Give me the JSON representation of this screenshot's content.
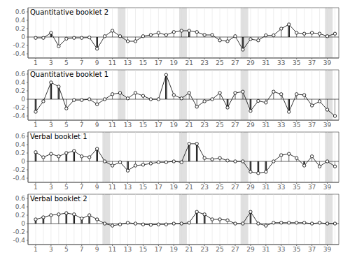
{
  "chart_data": [
    {
      "type": "stem",
      "title": "Quantitative booklet 2",
      "x": [
        1,
        2,
        3,
        4,
        5,
        6,
        7,
        8,
        9,
        10,
        11,
        12,
        13,
        14,
        15,
        16,
        17,
        18,
        19,
        20,
        21,
        22,
        23,
        24,
        25,
        26,
        27,
        28,
        29,
        30,
        31,
        32,
        33,
        34,
        35,
        36,
        37,
        38,
        39,
        40
      ],
      "values": [
        -0.02,
        -0.02,
        0.1,
        -0.22,
        -0.04,
        -0.02,
        -0.02,
        -0.01,
        -0.28,
        0.02,
        0.15,
        0.02,
        -0.1,
        -0.1,
        0.02,
        0.05,
        0.1,
        0.05,
        0.12,
        0.15,
        0.15,
        0.12,
        0.05,
        0.05,
        -0.08,
        -0.1,
        0.02,
        -0.3,
        -0.05,
        -0.08,
        0.04,
        0.04,
        0.2,
        0.3,
        0.1,
        0.08,
        0.1,
        0.08,
        0.02,
        0.08
      ],
      "highlighted_items": [
        2,
        3,
        9,
        21,
        28,
        34
      ],
      "shaded_items": [
        12,
        20,
        28,
        39
      ],
      "xlim": [
        0.0,
        40.5
      ],
      "ylim": [
        -0.5,
        0.7
      ],
      "xticks": [
        1,
        3,
        5,
        7,
        9,
        11,
        13,
        15,
        17,
        19,
        21,
        23,
        25,
        27,
        29,
        31,
        33,
        35,
        37,
        39
      ],
      "yticks": [
        -0.4,
        -0.2,
        0,
        0.2,
        0.4,
        0.6
      ],
      "grid": true,
      "color": "#000000",
      "shade_color": "#cccccc",
      "marker": "circle"
    },
    {
      "type": "stem",
      "title": "Quantitative booklet 1",
      "x": [
        1,
        2,
        3,
        4,
        5,
        6,
        7,
        8,
        9,
        10,
        11,
        12,
        13,
        14,
        15,
        16,
        17,
        18,
        19,
        20,
        21,
        22,
        23,
        24,
        25,
        26,
        27,
        28,
        29,
        30,
        31,
        32,
        33,
        34,
        35,
        36,
        37,
        38,
        39,
        40
      ],
      "values": [
        -0.3,
        -0.05,
        0.4,
        0.3,
        -0.22,
        -0.02,
        -0.02,
        0.0,
        -0.12,
        0.0,
        0.12,
        0.15,
        0.02,
        0.15,
        0.08,
        0.0,
        0.0,
        0.58,
        0.1,
        0.02,
        0.15,
        -0.18,
        -0.05,
        0.0,
        0.15,
        -0.2,
        0.15,
        0.18,
        -0.28,
        -0.04,
        -0.08,
        0.18,
        0.12,
        -0.3,
        0.12,
        0.1,
        -0.15,
        -0.05,
        -0.25,
        -0.4
      ],
      "highlighted_items": [
        1,
        3,
        4,
        18,
        24,
        26,
        29,
        34
      ],
      "shaded_items": [
        12,
        20,
        28,
        39
      ],
      "xlim": [
        0.0,
        40.5
      ],
      "ylim": [
        -0.5,
        0.7
      ],
      "xticks": [
        1,
        3,
        5,
        7,
        9,
        11,
        13,
        15,
        17,
        19,
        21,
        23,
        25,
        27,
        29,
        31,
        33,
        35,
        37,
        39
      ],
      "yticks": [
        -0.4,
        -0.2,
        0,
        0.2,
        0.4,
        0.6
      ],
      "grid": true,
      "color": "#000000",
      "shade_color": "#cccccc",
      "marker": "circle"
    },
    {
      "type": "stem",
      "title": "Verbal booklet 1",
      "x": [
        1,
        2,
        3,
        4,
        5,
        6,
        7,
        8,
        9,
        10,
        11,
        12,
        13,
        14,
        15,
        16,
        17,
        18,
        19,
        20,
        21,
        22,
        23,
        24,
        25,
        26,
        27,
        28,
        29,
        30,
        31,
        32,
        33,
        34,
        35,
        36,
        37,
        38,
        39,
        40
      ],
      "values": [
        0.22,
        0.1,
        0.18,
        0.12,
        0.2,
        0.25,
        0.12,
        0.1,
        0.3,
        0.0,
        -0.1,
        -0.02,
        -0.22,
        -0.1,
        -0.08,
        -0.05,
        -0.02,
        -0.02,
        0.0,
        -0.02,
        0.42,
        0.42,
        0.08,
        0.05,
        0.08,
        0.02,
        0.0,
        0.0,
        -0.25,
        -0.28,
        -0.25,
        0.0,
        0.15,
        0.18,
        0.08,
        -0.1,
        0.12,
        -0.12,
        0.0,
        -0.12
      ],
      "highlighted_items": [
        1,
        5,
        6,
        9,
        13,
        21,
        22,
        29,
        30,
        31,
        36
      ],
      "shaded_items": [
        10,
        20,
        28,
        39
      ],
      "xlim": [
        0.0,
        40.5
      ],
      "ylim": [
        -0.5,
        0.7
      ],
      "xticks": [
        1,
        3,
        5,
        7,
        9,
        11,
        13,
        15,
        17,
        19,
        21,
        23,
        25,
        27,
        29,
        31,
        33,
        35,
        37,
        39
      ],
      "yticks": [
        -0.4,
        -0.2,
        0,
        0.2,
        0.4,
        0.6
      ],
      "grid": true,
      "color": "#000000",
      "shade_color": "#cccccc",
      "marker": "circle"
    },
    {
      "type": "stem",
      "title": "Verbal booklet 2",
      "x": [
        1,
        2,
        3,
        4,
        5,
        6,
        7,
        8,
        9,
        10,
        11,
        12,
        13,
        14,
        15,
        16,
        17,
        18,
        19,
        20,
        21,
        22,
        23,
        24,
        25,
        26,
        27,
        28,
        29,
        30,
        31,
        32,
        33,
        34,
        35,
        36,
        37,
        38,
        39,
        40
      ],
      "values": [
        0.1,
        0.15,
        0.2,
        0.22,
        0.25,
        0.22,
        0.12,
        0.2,
        0.1,
        0.0,
        -0.05,
        -0.02,
        0.02,
        0.0,
        -0.02,
        -0.03,
        -0.02,
        -0.02,
        0.0,
        0.0,
        0.02,
        0.28,
        0.22,
        0.1,
        0.1,
        0.08,
        0.0,
        0.0,
        0.28,
        0.0,
        -0.05,
        0.02,
        0.02,
        0.02,
        0.02,
        0.02,
        0.0,
        0.02,
        0.0,
        0.0
      ],
      "highlighted_items": [
        1,
        2,
        5,
        6,
        7,
        8,
        22,
        23,
        29
      ],
      "shaded_items": [
        10,
        20,
        28,
        39
      ],
      "xlim": [
        0.0,
        40.5
      ],
      "ylim": [
        -0.5,
        0.7
      ],
      "xticks": [
        1,
        3,
        5,
        7,
        9,
        11,
        13,
        15,
        17,
        19,
        21,
        23,
        25,
        27,
        29,
        31,
        33,
        35,
        37,
        39
      ],
      "yticks": [
        -0.4,
        -0.2,
        0,
        0.2,
        0.4,
        0.6
      ],
      "grid": true,
      "color": "#000000",
      "shade_color": "#cccccc",
      "marker": "circle"
    }
  ]
}
